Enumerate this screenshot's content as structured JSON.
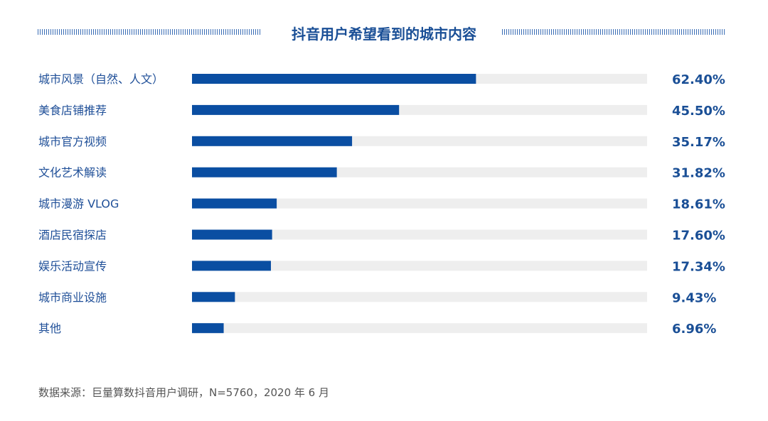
{
  "chart_data": {
    "type": "bar",
    "orientation": "horizontal",
    "title": "抖音用户希望看到的城市内容",
    "categories": [
      "城市风景（自然、人文）",
      "美食店铺推荐",
      "城市官方视频",
      "文化艺术解读",
      "城市漫游 VLOG",
      "酒店民宿探店",
      "娱乐活动宣传",
      "城市商业设施",
      "其他"
    ],
    "values": [
      62.4,
      45.5,
      35.17,
      31.82,
      18.61,
      17.6,
      17.34,
      9.43,
      6.96
    ],
    "value_labels": [
      "62.40%",
      "45.50%",
      "35.17%",
      "31.82%",
      "18.61%",
      "17.60%",
      "17.34%",
      "9.43%",
      "6.96%"
    ],
    "xlim": [
      0,
      100
    ],
    "grid": false,
    "colors": {
      "bar": "#0a4ea2",
      "track": "#eeeeee",
      "label": "#1f4f98",
      "value": "#1a4f96"
    }
  },
  "source": "数据来源：巨量算数抖音用户调研，N=5760，2020 年 6 月"
}
